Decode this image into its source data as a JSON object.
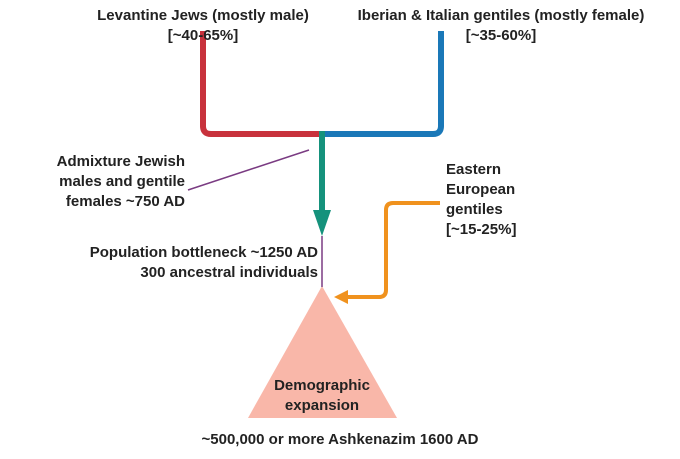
{
  "sources": {
    "levantine": {
      "name": "Levantine Jews (mostly male)",
      "share": "[~40-65%]",
      "color": "#c8323c"
    },
    "iberian_italian": {
      "name": "Iberian & Italian gentiles (mostly female)",
      "share": "[~35-60%]",
      "color": "#1a78b8"
    },
    "eastern_european": {
      "lines": [
        "Eastern",
        "European",
        "gentiles",
        "[~15-25%]"
      ],
      "color": "#f0921e"
    }
  },
  "events": {
    "admixture": {
      "lines": [
        "Admixture Jewish",
        "males and gentile",
        "females ~750 AD"
      ],
      "color": "#15927c"
    },
    "bottleneck": {
      "lines": [
        "Population bottleneck ~1250 AD",
        "300 ancestral individuals"
      ]
    },
    "expansion": {
      "lines": [
        "Demographic",
        "expansion"
      ],
      "color": "#f9b7a9"
    }
  },
  "result": "~500,000 or more Ashkenazim 1600 AD",
  "connector_color": "#7a3b82"
}
